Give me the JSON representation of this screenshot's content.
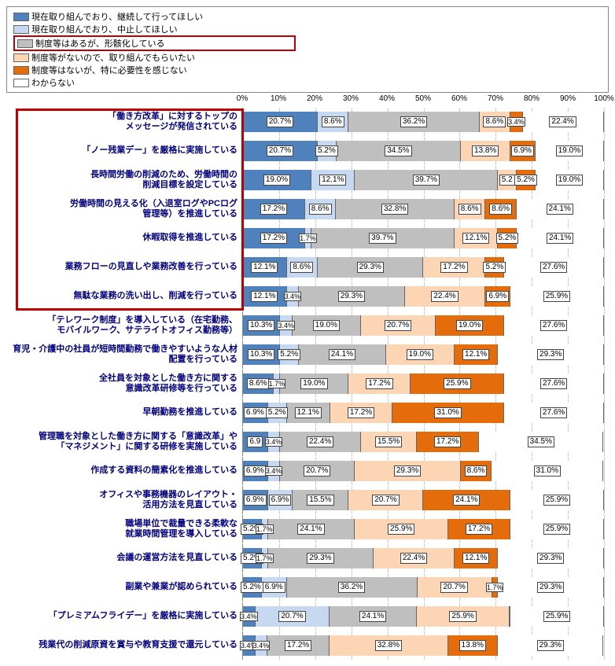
{
  "legend": {
    "items": [
      {
        "label": "現在取り組んでおり、継続して行ってほしい",
        "color": "#4f81bd",
        "boxed": false
      },
      {
        "label": "現在取り組んでおり、中止してほしい",
        "color": "#c6d9f1",
        "boxed": false
      },
      {
        "label": "制度等はあるが、形骸化している",
        "color": "#bfbfbf",
        "boxed": true
      },
      {
        "label": "制度等がないので、取り組んでもらいたい",
        "color": "#fcd5b4",
        "boxed": false
      },
      {
        "label": "制度等はないが、特に必要性を感じない",
        "color": "#e46c0a",
        "boxed": false
      },
      {
        "label": "わからない",
        "color": "#ffffff",
        "boxed": false
      }
    ]
  },
  "axisRange": {
    "min": 0,
    "max": 100,
    "step": 10
  },
  "series_colors": [
    "#4f81bd",
    "#c6d9f1",
    "#bfbfbf",
    "#fcd5b4",
    "#e46c0a",
    "#ffffff"
  ],
  "highlight": {
    "rows_from": 0,
    "rows_to": 6
  },
  "rows": [
    {
      "label": "「働き方改革」に対するトップの\nメッセージが発信されている",
      "segments": [
        {
          "v": 20.7,
          "s": "20.7%"
        },
        {
          "v": 8.6,
          "s": "8.6%"
        },
        {
          "v": 36.2,
          "s": "36.2%"
        },
        {
          "v": 8.6,
          "s": "8.6%"
        },
        {
          "v": 3.4,
          "s": "3.4%"
        },
        {
          "v": 22.4,
          "s": "22.4%"
        }
      ]
    },
    {
      "label": "「ノー残業デー」を厳格に実施している",
      "segments": [
        {
          "v": 20.7,
          "s": "20.7%"
        },
        {
          "v": 5.2,
          "s": "5.2%"
        },
        {
          "v": 34.5,
          "s": "34.5%"
        },
        {
          "v": 13.8,
          "s": "13.8%"
        },
        {
          "v": 6.9,
          "s": "6.9%"
        },
        {
          "v": 19.0,
          "s": "19.0%"
        }
      ]
    },
    {
      "label": "長時間労働の削減のため、労働時間の\n削減目標を設定している",
      "segments": [
        {
          "v": 19.0,
          "s": "19.0%"
        },
        {
          "v": 12.1,
          "s": "12.1%"
        },
        {
          "v": 39.7,
          "s": "39.7%"
        },
        {
          "v": 5.2,
          "s": "5.2"
        },
        {
          "v": 5.2,
          "s": "5.2%"
        },
        {
          "v": 19.0,
          "s": "19.0%"
        }
      ]
    },
    {
      "label": "労働時間の見える化（入退室ログやPCログ\n管理等）を推進している",
      "segments": [
        {
          "v": 17.2,
          "s": "17.2%"
        },
        {
          "v": 8.6,
          "s": "8.6%"
        },
        {
          "v": 32.8,
          "s": "32.8%"
        },
        {
          "v": 8.6,
          "s": "8.6%"
        },
        {
          "v": 8.6,
          "s": "8.6%"
        },
        {
          "v": 24.1,
          "s": "24.1%"
        }
      ]
    },
    {
      "label": "休暇取得を推進している",
      "segments": [
        {
          "v": 17.2,
          "s": "17.2%"
        },
        {
          "v": 1.7,
          "s": "1.7%"
        },
        {
          "v": 39.7,
          "s": "39.7%"
        },
        {
          "v": 12.1,
          "s": "12.1%"
        },
        {
          "v": 5.2,
          "s": "5.2%"
        },
        {
          "v": 24.1,
          "s": "24.1%"
        }
      ]
    },
    {
      "label": "業務フローの見直しや業務改善を行っている",
      "segments": [
        {
          "v": 12.1,
          "s": "12.1%"
        },
        {
          "v": 8.6,
          "s": "8.6%"
        },
        {
          "v": 29.3,
          "s": "29.3%"
        },
        {
          "v": 17.2,
          "s": "17.2%"
        },
        {
          "v": 5.2,
          "s": "5.2%"
        },
        {
          "v": 27.6,
          "s": "27.6%"
        }
      ]
    },
    {
      "label": "無駄な業務の洗い出し、削減を行っている",
      "segments": [
        {
          "v": 12.1,
          "s": "12.1%"
        },
        {
          "v": 3.4,
          "s": "3.4%"
        },
        {
          "v": 29.3,
          "s": "29.3%"
        },
        {
          "v": 22.4,
          "s": "22.4%"
        },
        {
          "v": 6.9,
          "s": "6.9%"
        },
        {
          "v": 25.9,
          "s": "25.9%"
        }
      ]
    },
    {
      "label": "「テレワーク制度」を導入している（在宅勤務、\nモバイルワーク、サテライトオフィス勤務等）",
      "segments": [
        {
          "v": 10.3,
          "s": "10.3%"
        },
        {
          "v": 3.4,
          "s": "3.4%"
        },
        {
          "v": 19.0,
          "s": "19.0%"
        },
        {
          "v": 20.7,
          "s": "20.7%"
        },
        {
          "v": 19.0,
          "s": "19.0%"
        },
        {
          "v": 27.6,
          "s": "27.6%"
        }
      ]
    },
    {
      "label": "育児・介護中の社員が短時間勤務で働きやすいような人材\n配置を行っている",
      "segments": [
        {
          "v": 10.3,
          "s": "10.3%"
        },
        {
          "v": 5.2,
          "s": "5.2%"
        },
        {
          "v": 24.1,
          "s": "24.1%"
        },
        {
          "v": 19.0,
          "s": "19.0%"
        },
        {
          "v": 12.1,
          "s": "12.1%"
        },
        {
          "v": 29.3,
          "s": "29.3%"
        }
      ]
    },
    {
      "label": "全社員を対象とした働き方に関する\n意識改革研修等を行っている",
      "segments": [
        {
          "v": 8.6,
          "s": "8.6%"
        },
        {
          "v": 1.7,
          "s": "1.7%"
        },
        {
          "v": 19.0,
          "s": "19.0%"
        },
        {
          "v": 17.2,
          "s": "17.2%"
        },
        {
          "v": 25.9,
          "s": "25.9%"
        },
        {
          "v": 27.6,
          "s": "27.6%"
        }
      ]
    },
    {
      "label": "早朝勤務を推進している",
      "segments": [
        {
          "v": 6.9,
          "s": "6.9%"
        },
        {
          "v": 5.2,
          "s": "5.2%"
        },
        {
          "v": 12.1,
          "s": "12.1%"
        },
        {
          "v": 17.2,
          "s": "17.2%"
        },
        {
          "v": 31.0,
          "s": "31.0%"
        },
        {
          "v": 27.6,
          "s": "27.6%"
        }
      ]
    },
    {
      "label": "管理職を対象とした働き方に関する「意識改革」や\n「マネジメント」に関する研修を実施している",
      "segments": [
        {
          "v": 6.9,
          "s": "6.9"
        },
        {
          "v": 3.4,
          "s": "3.4%"
        },
        {
          "v": 22.4,
          "s": "22.4%"
        },
        {
          "v": 15.5,
          "s": "15.5%"
        },
        {
          "v": 17.2,
          "s": "17.2%"
        },
        {
          "v": 34.5,
          "s": "34.5%"
        }
      ]
    },
    {
      "label": "作成する資料の簡素化を推進している",
      "segments": [
        {
          "v": 6.9,
          "s": "6.9%"
        },
        {
          "v": 3.4,
          "s": "3.4%"
        },
        {
          "v": 20.7,
          "s": "20.7%"
        },
        {
          "v": 29.3,
          "s": "29.3%"
        },
        {
          "v": 8.6,
          "s": "8.6%"
        },
        {
          "v": 31.0,
          "s": "31.0%"
        }
      ]
    },
    {
      "label": "オフィスや事務機器のレイアウト・\n活用方法を見直している",
      "segments": [
        {
          "v": 6.9,
          "s": "6.9%"
        },
        {
          "v": 6.9,
          "s": "6.9%"
        },
        {
          "v": 15.5,
          "s": "15.5%"
        },
        {
          "v": 20.7,
          "s": "20.7%"
        },
        {
          "v": 24.1,
          "s": "24.1%"
        },
        {
          "v": 25.9,
          "s": "25.9%"
        }
      ]
    },
    {
      "label": "職場単位で裁量できる柔軟な\n就業時間管理を導入している",
      "segments": [
        {
          "v": 5.2,
          "s": "5.2%"
        },
        {
          "v": 1.7,
          "s": "1.7%"
        },
        {
          "v": 24.1,
          "s": "24.1%"
        },
        {
          "v": 25.9,
          "s": "25.9%"
        },
        {
          "v": 17.2,
          "s": "17.2%"
        },
        {
          "v": 25.9,
          "s": "25.9%"
        }
      ]
    },
    {
      "label": "会議の運営方法を見直している",
      "segments": [
        {
          "v": 5.2,
          "s": "5.2%"
        },
        {
          "v": 1.7,
          "s": "1.7%"
        },
        {
          "v": 29.3,
          "s": "29.3%"
        },
        {
          "v": 22.4,
          "s": "22.4%"
        },
        {
          "v": 12.1,
          "s": "12.1%"
        },
        {
          "v": 29.3,
          "s": "29.3%"
        }
      ]
    },
    {
      "label": "副業や兼業が認められている",
      "segments": [
        {
          "v": 5.2,
          "s": "5.2%"
        },
        {
          "v": 6.9,
          "s": "6.9%"
        },
        {
          "v": 36.2,
          "s": "36.2%"
        },
        {
          "v": 20.7,
          "s": "20.7%"
        },
        {
          "v": 1.7,
          "s": "1.7%"
        },
        {
          "v": 29.3,
          "s": "29.3%"
        }
      ]
    },
    {
      "label": "「プレミアムフライデー」を厳格に実施している",
      "segments": [
        {
          "v": 3.4,
          "s": "3.4%"
        },
        {
          "v": 20.7,
          "s": "20.7%"
        },
        {
          "v": 24.1,
          "s": "24.1%"
        },
        {
          "v": 25.9,
          "s": "25.9%"
        },
        {
          "v": 0,
          "s": ""
        },
        {
          "v": 25.9,
          "s": "25.9%"
        }
      ]
    },
    {
      "label": "残業代の削減原資を賞与や教育支援で還元している",
      "segments": [
        {
          "v": 3.4,
          "s": "3.4%"
        },
        {
          "v": 3.4,
          "s": "3.4%"
        },
        {
          "v": 17.2,
          "s": "17.2%"
        },
        {
          "v": 32.8,
          "s": "32.8%"
        },
        {
          "v": 13.8,
          "s": "13.8%"
        },
        {
          "v": 29.3,
          "s": "29.3%"
        }
      ]
    }
  ]
}
